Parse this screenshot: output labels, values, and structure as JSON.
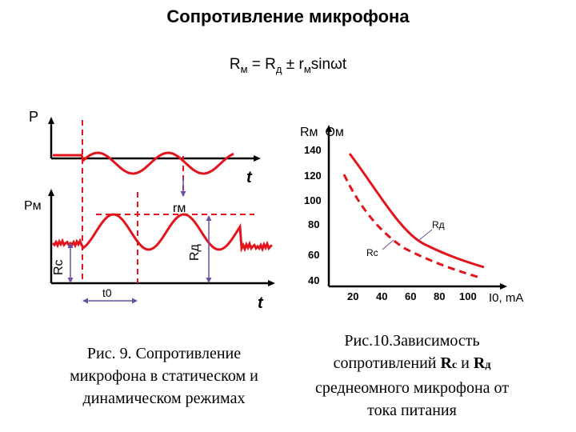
{
  "title": "Сопротивление микрофона",
  "formula": {
    "r1": "R",
    "s1": "м",
    "eq": " = ",
    "r2": "R",
    "s2": "д",
    "pm": " ± ",
    "r3": "r",
    "s3": "м",
    "tail": "sinωt"
  },
  "fig9": {
    "p_label": "P",
    "t_top": "t",
    "rm_axis": "Pм",
    "rm_amp": "rм",
    "rd": "Rд",
    "rc": "Rc",
    "t0": "t0",
    "t_bottom": "t",
    "caption_l1": "Рис. 9. Сопротивление",
    "caption_l2": "микрофона в статическом и",
    "caption_l3": "динамическом режимах",
    "colors": {
      "curve": "#e3141b",
      "axis": "#000000",
      "guide": "#6b4fa0",
      "dash": "#e3141b"
    }
  },
  "fig10": {
    "y_axis": "Rм  Ом",
    "x_axis": "I0, mA",
    "y_ticks": [
      "140",
      "120",
      "100",
      "80",
      "60",
      "40"
    ],
    "x_ticks": [
      "20",
      "40",
      "60",
      "80",
      "100"
    ],
    "curve_rd": "Rд",
    "curve_rc": "Rc",
    "caption_l1": "Рис.10.Зависимость",
    "caption_l2a": "сопротивлений ",
    "caption_b1": "R",
    "caption_b1s": "с",
    "caption_mid": " и ",
    "caption_b2": "R",
    "caption_b2s": "д",
    "caption_l3": "среднеомного микрофона от",
    "caption_l4": "тока питания",
    "colors": {
      "curve": "#e3141b"
    }
  }
}
